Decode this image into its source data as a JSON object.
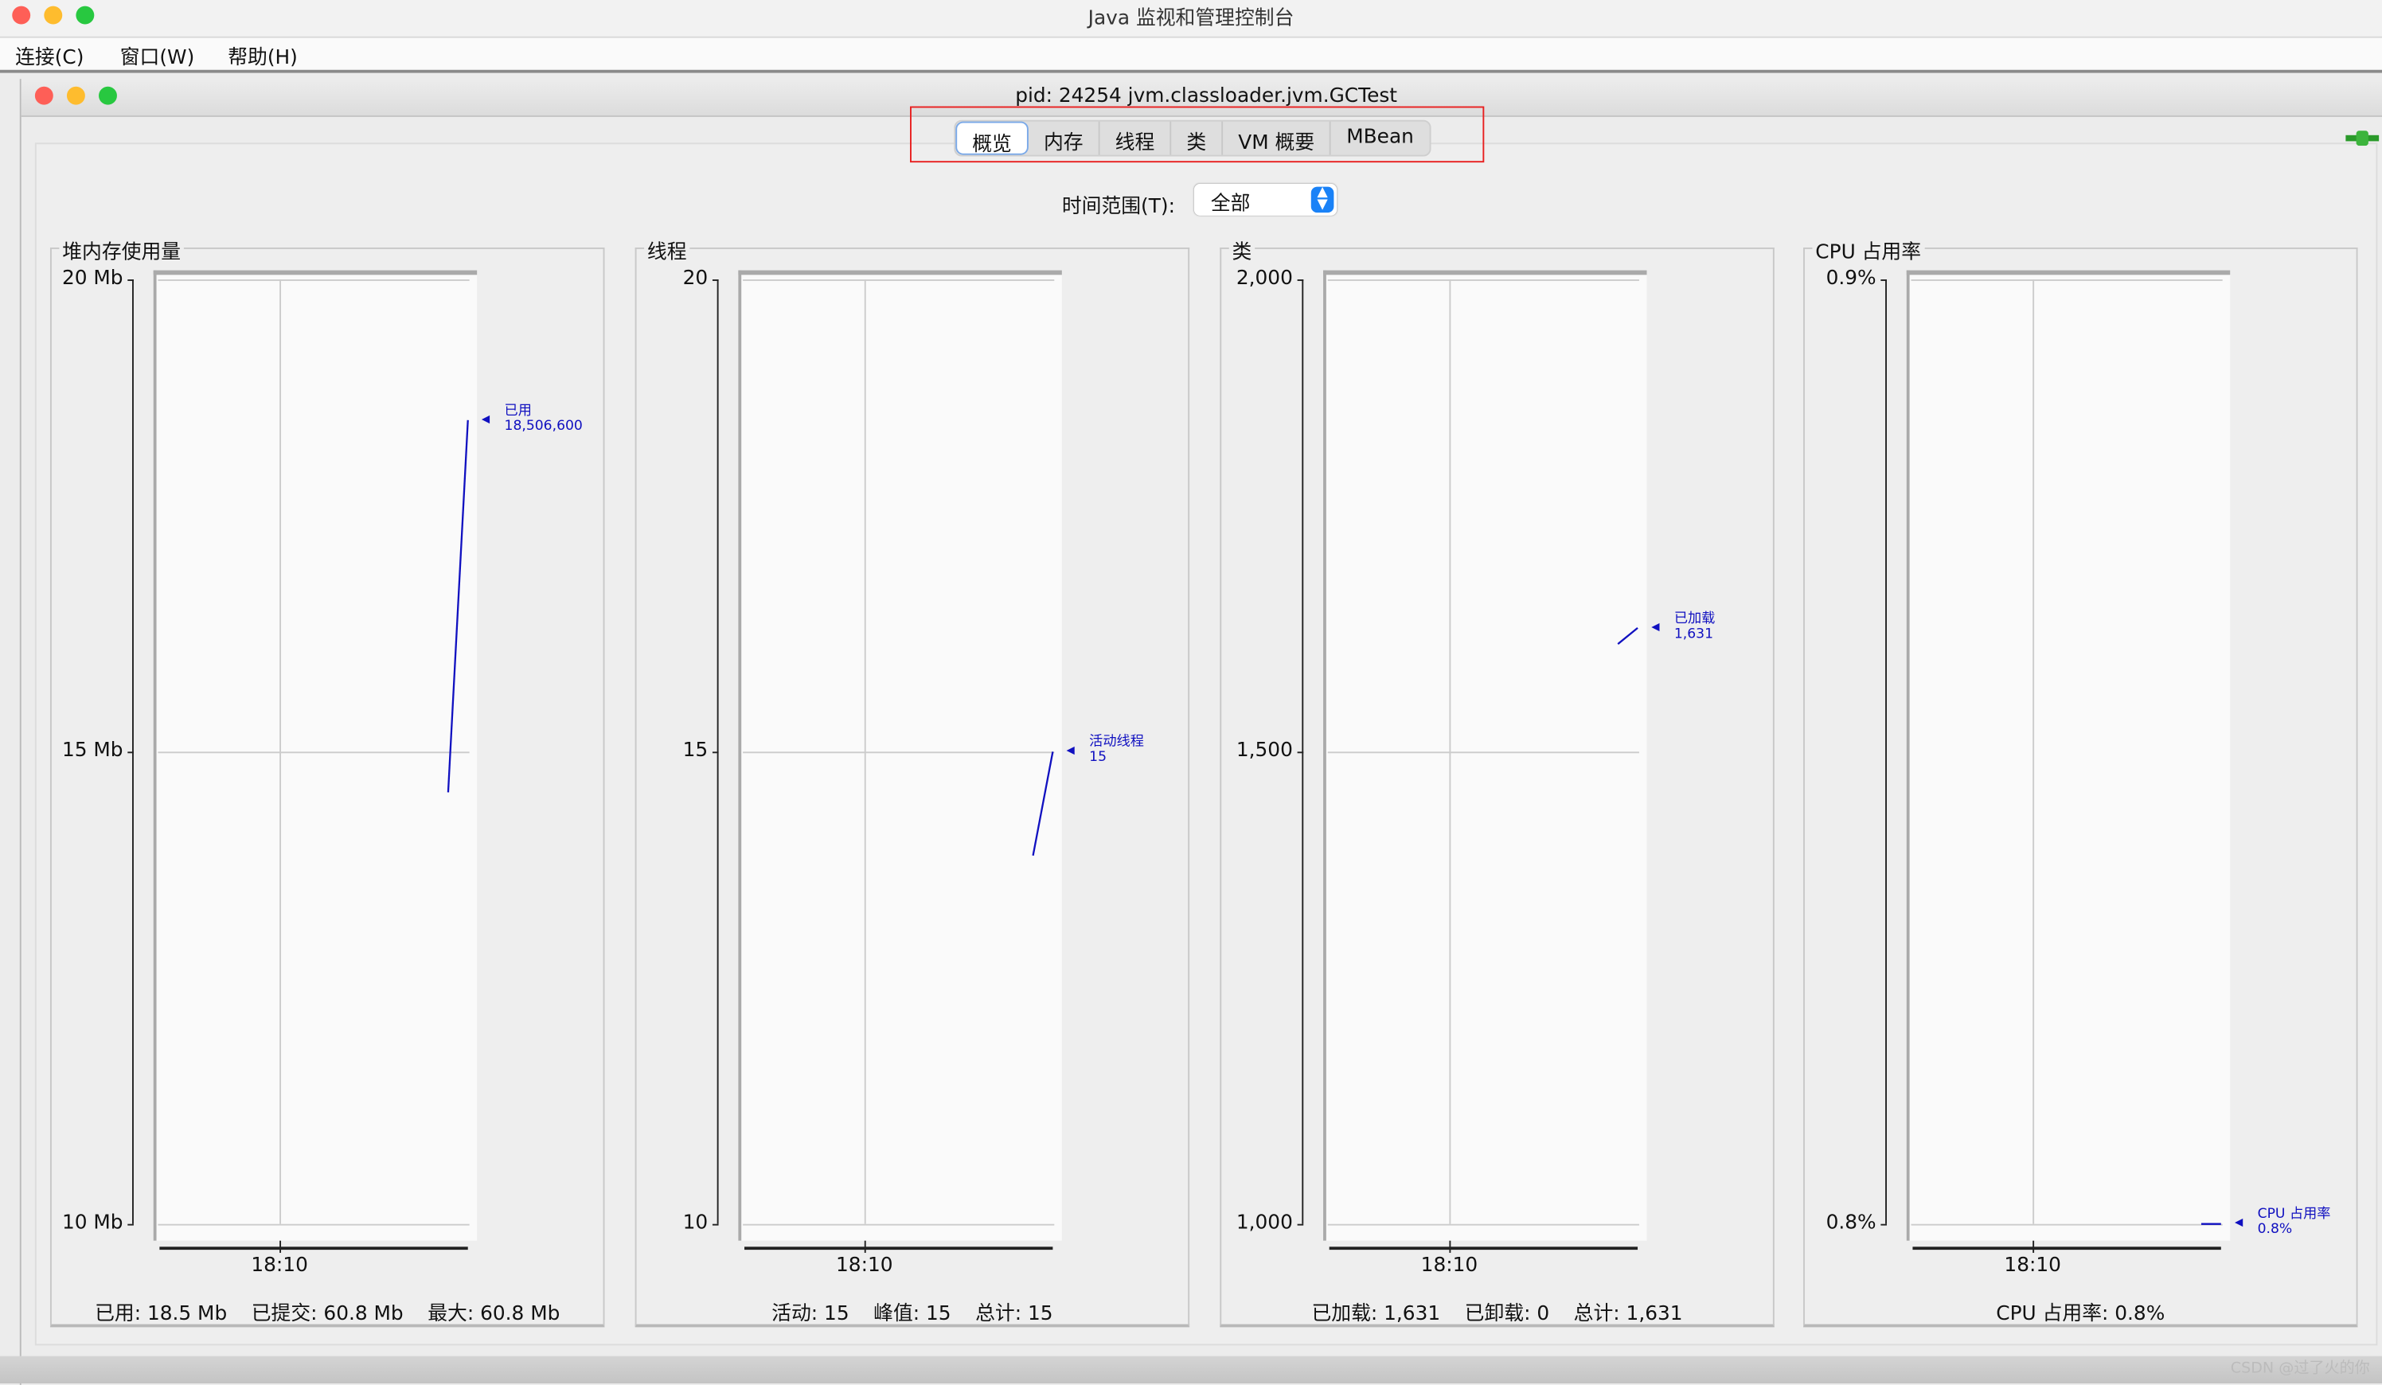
{
  "app": {
    "title": "Java 监视和管理控制台"
  },
  "menu": [
    {
      "label": "连接(C)"
    },
    {
      "label": "窗口(W)"
    },
    {
      "label": "帮助(H)"
    }
  ],
  "window": {
    "title": "pid: 24254 jvm.classloader.jvm.GCTest"
  },
  "tabs": [
    {
      "label": "概览",
      "selected": true
    },
    {
      "label": "内存"
    },
    {
      "label": "线程"
    },
    {
      "label": "类"
    },
    {
      "label": "VM 概要"
    },
    {
      "label": "MBean"
    }
  ],
  "time_range": {
    "label": "时间范围(T):",
    "value": "全部"
  },
  "colors": {
    "series": "#1010c0",
    "highlight_box": "#e82020",
    "select_accent": "#1a82f7"
  },
  "chart_data": [
    {
      "type": "line",
      "title": "堆内存使用量",
      "ylim": [
        10,
        20
      ],
      "yticks": [
        "20 Mb",
        "15 Mb",
        "10 Mb"
      ],
      "xticks": [
        "18:10"
      ],
      "series": [
        {
          "name": "已用",
          "values": [
            14.57,
            18.51
          ],
          "label_value": "18,506,600"
        }
      ],
      "summary": [
        "已用: 18.5 Mb",
        "已提交: 60.8 Mb",
        "最大: 60.8 Mb"
      ]
    },
    {
      "type": "line",
      "title": "线程",
      "ylim": [
        10,
        20
      ],
      "yticks": [
        "20",
        "15",
        "10"
      ],
      "xticks": [
        "18:10"
      ],
      "series": [
        {
          "name": "活动线程",
          "values": [
            13.9,
            15
          ],
          "label_value": "15"
        }
      ],
      "summary": [
        "活动: 15",
        "峰值: 15",
        "总计: 15"
      ]
    },
    {
      "type": "line",
      "title": "类",
      "ylim": [
        1000,
        2000
      ],
      "yticks": [
        "2,000",
        "1,500",
        "1,000"
      ],
      "xticks": [
        "18:10"
      ],
      "series": [
        {
          "name": "已加载",
          "values": [
            1614,
            1631
          ],
          "label_value": "1,631"
        }
      ],
      "summary": [
        "已加载: 1,631",
        "已卸载: 0",
        "总计: 1,631"
      ]
    },
    {
      "type": "line",
      "title": "CPU 占用率",
      "ylim": [
        0.8,
        0.9
      ],
      "yticks": [
        "0.9%",
        "0.8%"
      ],
      "xticks": [
        "18:10"
      ],
      "series": [
        {
          "name": "CPU 占用率",
          "values": [
            0.8,
            0.8
          ],
          "label_value": "0.8%"
        }
      ],
      "summary": [
        "CPU 占用率: 0.8%"
      ]
    }
  ],
  "watermark": "CSDN @过了火的你"
}
